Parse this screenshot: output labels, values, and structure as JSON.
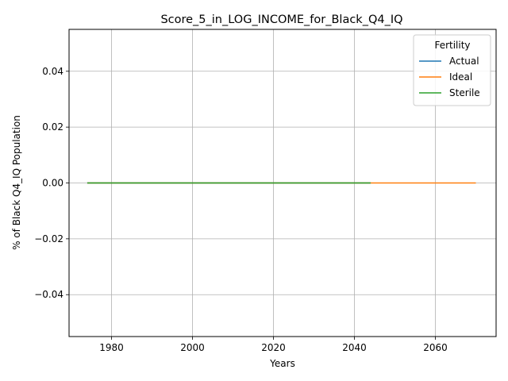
{
  "chart_data": {
    "type": "line",
    "title": "Score_5_in_LOG_INCOME_for_Black_Q4_IQ",
    "xlabel": "Years",
    "ylabel": "% of Black Q4_IQ Population",
    "xlim": [
      1969.5,
      2075
    ],
    "ylim": [
      -0.055,
      0.055
    ],
    "xticks": [
      1980,
      2000,
      2020,
      2040,
      2060
    ],
    "yticks": [
      -0.04,
      -0.02,
      0.0,
      0.02,
      0.04
    ],
    "ytick_labels": [
      "−0.04",
      "−0.02",
      "0.00",
      "0.02",
      "0.04"
    ],
    "grid": true,
    "legend": {
      "title": "Fertility",
      "placement": "top-right"
    },
    "series": [
      {
        "name": "Actual",
        "color": "#1f77b4",
        "x": [
          1974,
          2044
        ],
        "y": [
          0,
          0
        ]
      },
      {
        "name": "Ideal",
        "color": "#ff7f0e",
        "x": [
          1974,
          2070
        ],
        "y": [
          0,
          0
        ]
      },
      {
        "name": "Sterile",
        "color": "#2ca02c",
        "x": [
          1974,
          2044
        ],
        "y": [
          0,
          0
        ]
      }
    ]
  }
}
